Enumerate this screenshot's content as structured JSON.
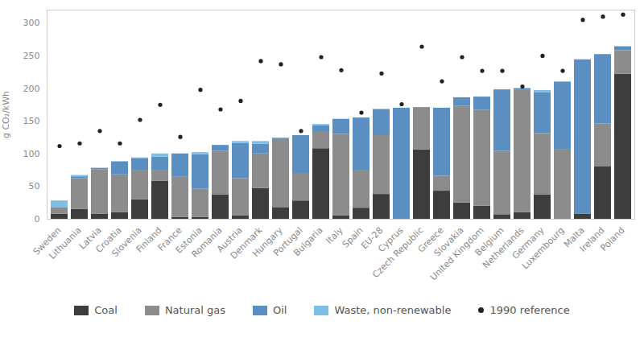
{
  "chart_data": {
    "type": "bar",
    "stacked": true,
    "y_label": "g CO₂/kWh",
    "categories": [
      "Sweden",
      "Lithuania",
      "Latvia",
      "Croatia",
      "Slovenia",
      "Finland",
      "France",
      "Estonia",
      "Romania",
      "Austria",
      "Denmark",
      "Hungary",
      "Portugal",
      "Bulgaria",
      "Italy",
      "Spain",
      "EU-28",
      "Cyprus",
      "Czech Republic",
      "Greece",
      "Slovakia",
      "United Kingdom",
      "Belgium",
      "Netherlands",
      "Germany",
      "Luxembourg",
      "Malta",
      "Ireland",
      "Poland"
    ],
    "series": [
      {
        "name": "Coal",
        "color": "#3d3d3d",
        "type": "bar",
        "values": [
          8,
          15,
          8,
          10,
          30,
          58,
          3,
          3,
          37,
          5,
          47,
          18,
          28,
          108,
          5,
          17,
          38,
          0,
          106,
          43,
          25,
          20,
          7,
          10,
          37,
          0,
          8,
          80,
          222
        ]
      },
      {
        "name": "Natural gas",
        "color": "#8c8c8c",
        "type": "bar",
        "values": [
          10,
          47,
          68,
          58,
          45,
          17,
          62,
          43,
          67,
          57,
          53,
          104,
          41,
          25,
          125,
          58,
          90,
          0,
          64,
          23,
          148,
          147,
          97,
          188,
          94,
          107,
          0,
          66,
          36
        ]
      },
      {
        "name": "Oil",
        "color": "#5b8fc1",
        "type": "bar",
        "values": [
          0,
          3,
          2,
          20,
          18,
          20,
          35,
          53,
          9,
          54,
          15,
          2,
          59,
          10,
          23,
          80,
          40,
          170,
          1,
          104,
          13,
          20,
          94,
          2,
          63,
          103,
          236,
          106,
          6
        ]
      },
      {
        "name": "Waste, non-renewable",
        "color": "#7cc0e8",
        "type": "bar",
        "values": [
          10,
          2,
          0,
          0,
          1,
          5,
          0,
          3,
          0,
          3,
          4,
          0,
          0,
          2,
          0,
          0,
          0,
          0,
          0,
          0,
          0,
          0,
          0,
          0,
          3,
          0,
          0,
          0,
          0
        ]
      },
      {
        "name": "1990 reference",
        "color": "#222222",
        "type": "scatter",
        "marker": "circle",
        "values": [
          112,
          116,
          135,
          116,
          152,
          175,
          126,
          198,
          168,
          181,
          242,
          237,
          135,
          248,
          228,
          163,
          223,
          176,
          264,
          211,
          248,
          227,
          227,
          203,
          250,
          227,
          305,
          310,
          313
        ]
      }
    ],
    "ylim": [
      0,
      320
    ],
    "yticks": [
      0,
      50,
      100,
      150,
      200,
      250,
      300
    ],
    "grid": false,
    "legend": "bottom"
  }
}
